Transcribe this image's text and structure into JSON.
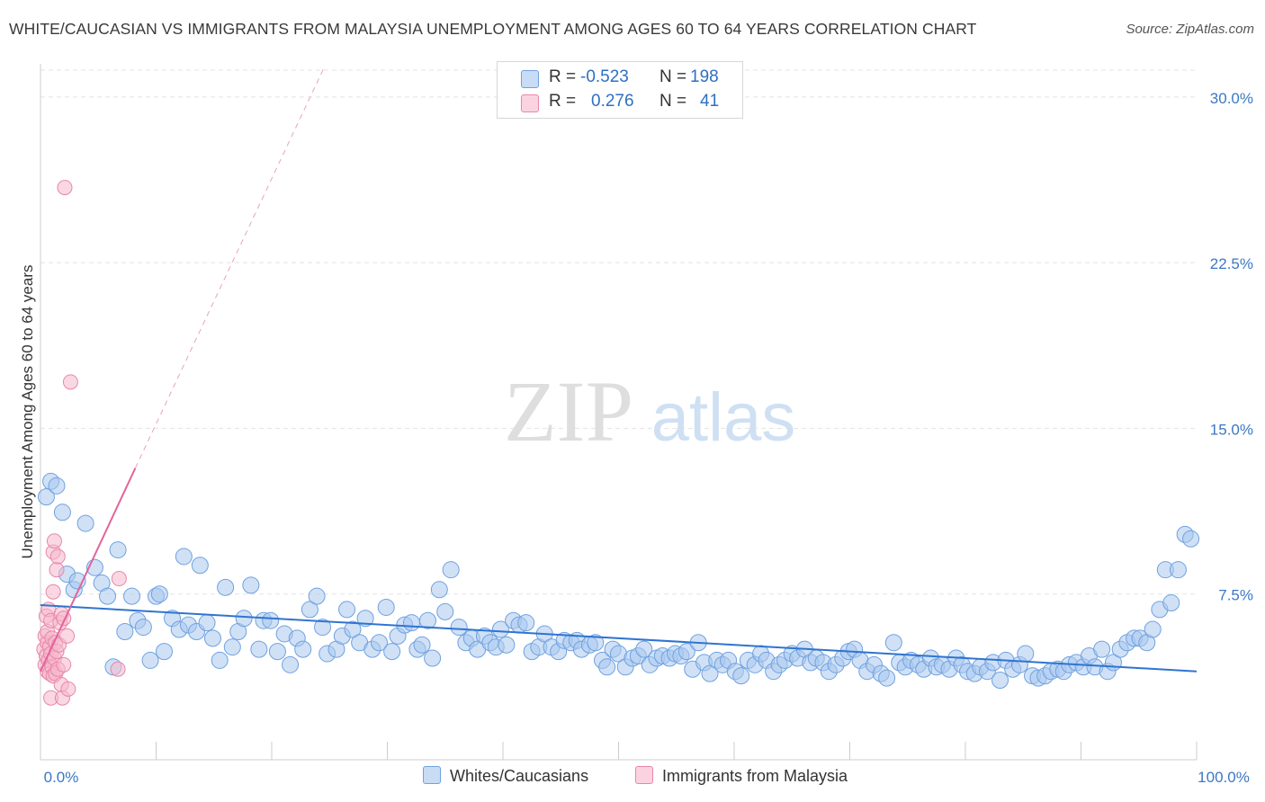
{
  "title": "WHITE/CAUCASIAN VS IMMIGRANTS FROM MALAYSIA UNEMPLOYMENT AMONG AGES 60 TO 64 YEARS CORRELATION CHART",
  "source": "Source: ZipAtlas.com",
  "watermark": {
    "zip": "ZIP",
    "atlas": "atlas"
  },
  "legend": {
    "rows": [
      {
        "r_label": "R =",
        "r_value": "-0.523",
        "n_label": "N =",
        "n_value": "198",
        "color": "#a9c8ef"
      },
      {
        "r_label": "R =",
        "r_value": "0.276",
        "n_label": "N =",
        "n_value": "41",
        "color": "#f6b8cc"
      }
    ]
  },
  "bottom_legend": [
    {
      "label": "Whites/Caucasians",
      "color": "#a9c8ef"
    },
    {
      "label": "Immigrants from Malaysia",
      "color": "#f6b8cc"
    }
  ],
  "chart_data": {
    "type": "scatter",
    "ylabel": "Unemployment Among Ages 60 to 64 years",
    "xlim": [
      0,
      100
    ],
    "ylim": [
      0,
      31.5
    ],
    "x_tick_labels": [
      "0.0%",
      "100.0%"
    ],
    "y_ticks": [
      {
        "value": 7.5,
        "label": "7.5%"
      },
      {
        "value": 15.0,
        "label": "15.0%"
      },
      {
        "value": 22.5,
        "label": "22.5%"
      },
      {
        "value": 30.0,
        "label": "30.0%"
      }
    ],
    "grid": true,
    "legend_position": "top-center",
    "series": [
      {
        "name": "Whites/Caucasians",
        "color": "#6fa1e0",
        "fill": "#a9c8ef",
        "trend": {
          "x0": 0,
          "y0": 7.0,
          "x1": 100,
          "y1": 4.0,
          "color": "#2f74d0"
        },
        "points": [
          [
            0.5,
            11.9
          ],
          [
            0.9,
            12.6
          ],
          [
            1.4,
            12.4
          ],
          [
            1.9,
            11.2
          ],
          [
            2.3,
            8.4
          ],
          [
            2.9,
            7.7
          ],
          [
            3.2,
            8.1
          ],
          [
            3.9,
            10.7
          ],
          [
            4.7,
            8.7
          ],
          [
            5.3,
            8.0
          ],
          [
            5.8,
            7.4
          ],
          [
            6.3,
            4.2
          ],
          [
            6.7,
            9.5
          ],
          [
            7.3,
            5.8
          ],
          [
            7.9,
            7.4
          ],
          [
            8.4,
            6.3
          ],
          [
            8.9,
            6.0
          ],
          [
            9.5,
            4.5
          ],
          [
            10.0,
            7.4
          ],
          [
            10.3,
            7.5
          ],
          [
            10.7,
            4.9
          ],
          [
            11.4,
            6.4
          ],
          [
            12.0,
            5.9
          ],
          [
            12.4,
            9.2
          ],
          [
            12.8,
            6.1
          ],
          [
            13.5,
            5.8
          ],
          [
            13.8,
            8.8
          ],
          [
            14.4,
            6.2
          ],
          [
            14.9,
            5.5
          ],
          [
            15.5,
            4.5
          ],
          [
            16.0,
            7.8
          ],
          [
            16.6,
            5.1
          ],
          [
            17.1,
            5.8
          ],
          [
            17.6,
            6.4
          ],
          [
            18.2,
            7.9
          ],
          [
            18.9,
            5.0
          ],
          [
            19.3,
            6.3
          ],
          [
            19.9,
            6.3
          ],
          [
            20.5,
            4.9
          ],
          [
            21.1,
            5.7
          ],
          [
            21.6,
            4.3
          ],
          [
            22.2,
            5.5
          ],
          [
            22.7,
            5.0
          ],
          [
            23.3,
            6.8
          ],
          [
            23.9,
            7.4
          ],
          [
            24.4,
            6.0
          ],
          [
            24.8,
            4.8
          ],
          [
            25.6,
            5.0
          ],
          [
            26.1,
            5.6
          ],
          [
            26.5,
            6.8
          ],
          [
            27.0,
            5.9
          ],
          [
            27.6,
            5.3
          ],
          [
            28.1,
            6.4
          ],
          [
            28.7,
            5.0
          ],
          [
            29.3,
            5.3
          ],
          [
            29.9,
            6.9
          ],
          [
            30.4,
            4.9
          ],
          [
            30.9,
            5.6
          ],
          [
            31.5,
            6.1
          ],
          [
            32.1,
            6.2
          ],
          [
            32.6,
            5.0
          ],
          [
            33.0,
            5.2
          ],
          [
            33.5,
            6.3
          ],
          [
            33.9,
            4.6
          ],
          [
            34.5,
            7.7
          ],
          [
            35.0,
            6.7
          ],
          [
            35.5,
            8.6
          ],
          [
            36.2,
            6.0
          ],
          [
            36.8,
            5.3
          ],
          [
            37.3,
            5.5
          ],
          [
            37.8,
            5.0
          ],
          [
            38.4,
            5.6
          ],
          [
            38.9,
            5.3
          ],
          [
            39.4,
            5.1
          ],
          [
            39.8,
            5.9
          ],
          [
            40.3,
            5.2
          ],
          [
            40.9,
            6.3
          ],
          [
            41.4,
            6.1
          ],
          [
            42.0,
            6.2
          ],
          [
            42.5,
            4.9
          ],
          [
            43.1,
            5.1
          ],
          [
            43.6,
            5.7
          ],
          [
            44.2,
            5.1
          ],
          [
            44.8,
            4.9
          ],
          [
            45.3,
            5.4
          ],
          [
            45.9,
            5.3
          ],
          [
            46.4,
            5.4
          ],
          [
            46.8,
            5.0
          ],
          [
            47.5,
            5.2
          ],
          [
            48.0,
            5.3
          ],
          [
            48.6,
            4.5
          ],
          [
            49.0,
            4.2
          ],
          [
            49.5,
            5.0
          ],
          [
            50.0,
            4.8
          ],
          [
            50.6,
            4.2
          ],
          [
            51.2,
            4.6
          ],
          [
            51.7,
            4.7
          ],
          [
            52.2,
            5.0
          ],
          [
            52.7,
            4.3
          ],
          [
            53.3,
            4.6
          ],
          [
            53.8,
            4.7
          ],
          [
            54.4,
            4.6
          ],
          [
            54.9,
            4.8
          ],
          [
            55.4,
            4.7
          ],
          [
            55.9,
            4.9
          ],
          [
            56.4,
            4.1
          ],
          [
            56.9,
            5.3
          ],
          [
            57.4,
            4.4
          ],
          [
            57.9,
            3.9
          ],
          [
            58.5,
            4.5
          ],
          [
            59.0,
            4.3
          ],
          [
            59.5,
            4.5
          ],
          [
            60.1,
            4.0
          ],
          [
            60.6,
            3.8
          ],
          [
            61.2,
            4.5
          ],
          [
            61.8,
            4.3
          ],
          [
            62.3,
            4.8
          ],
          [
            62.8,
            4.5
          ],
          [
            63.4,
            4.0
          ],
          [
            63.9,
            4.3
          ],
          [
            64.4,
            4.5
          ],
          [
            65.0,
            4.8
          ],
          [
            65.5,
            4.6
          ],
          [
            66.1,
            5.0
          ],
          [
            66.6,
            4.4
          ],
          [
            67.1,
            4.6
          ],
          [
            67.7,
            4.4
          ],
          [
            68.2,
            4.0
          ],
          [
            68.8,
            4.3
          ],
          [
            69.4,
            4.6
          ],
          [
            69.9,
            4.9
          ],
          [
            70.4,
            5.0
          ],
          [
            70.9,
            4.5
          ],
          [
            71.5,
            4.0
          ],
          [
            72.1,
            4.3
          ],
          [
            72.7,
            3.9
          ],
          [
            73.2,
            3.7
          ],
          [
            73.8,
            5.3
          ],
          [
            74.3,
            4.4
          ],
          [
            74.8,
            4.2
          ],
          [
            75.3,
            4.5
          ],
          [
            75.9,
            4.3
          ],
          [
            76.4,
            4.1
          ],
          [
            77.0,
            4.6
          ],
          [
            77.5,
            4.2
          ],
          [
            78.0,
            4.3
          ],
          [
            78.6,
            4.1
          ],
          [
            79.2,
            4.6
          ],
          [
            79.7,
            4.3
          ],
          [
            80.2,
            4.0
          ],
          [
            80.8,
            3.9
          ],
          [
            81.3,
            4.2
          ],
          [
            81.9,
            4.0
          ],
          [
            82.4,
            4.4
          ],
          [
            83.0,
            3.6
          ],
          [
            83.5,
            4.5
          ],
          [
            84.1,
            4.1
          ],
          [
            84.7,
            4.3
          ],
          [
            85.2,
            4.8
          ],
          [
            85.8,
            3.8
          ],
          [
            86.3,
            3.7
          ],
          [
            86.9,
            3.8
          ],
          [
            87.4,
            4.0
          ],
          [
            88.0,
            4.1
          ],
          [
            88.5,
            4.0
          ],
          [
            89.0,
            4.3
          ],
          [
            89.6,
            4.4
          ],
          [
            90.2,
            4.2
          ],
          [
            90.7,
            4.7
          ],
          [
            91.2,
            4.2
          ],
          [
            91.8,
            5.0
          ],
          [
            92.3,
            4.0
          ],
          [
            92.8,
            4.4
          ],
          [
            93.4,
            5.0
          ],
          [
            94.0,
            5.3
          ],
          [
            94.6,
            5.5
          ],
          [
            95.1,
            5.5
          ],
          [
            95.7,
            5.3
          ],
          [
            96.2,
            5.9
          ],
          [
            96.8,
            6.8
          ],
          [
            97.3,
            8.6
          ],
          [
            97.8,
            7.1
          ],
          [
            98.4,
            8.6
          ],
          [
            99.0,
            10.2
          ],
          [
            99.5,
            10.0
          ]
        ]
      },
      {
        "name": "Immigrants from Malaysia",
        "color": "#e887a8",
        "fill": "#f6b8cc",
        "trend": {
          "x0": 0,
          "y0": 4.0,
          "x1": 8.2,
          "y1": 13.2,
          "x_dash_end": 24.5,
          "y_dash_end": 31.3,
          "color": "#e3649a"
        },
        "points": [
          [
            0.3,
            5.0
          ],
          [
            0.4,
            4.3
          ],
          [
            0.4,
            5.6
          ],
          [
            0.5,
            4.7
          ],
          [
            0.5,
            6.5
          ],
          [
            0.6,
            4.0
          ],
          [
            0.6,
            5.3
          ],
          [
            0.6,
            5.8
          ],
          [
            0.7,
            4.5
          ],
          [
            0.7,
            6.8
          ],
          [
            0.8,
            3.9
          ],
          [
            0.8,
            5.1
          ],
          [
            0.9,
            4.8
          ],
          [
            0.9,
            6.3
          ],
          [
            0.9,
            2.8
          ],
          [
            1.0,
            4.2
          ],
          [
            1.0,
            5.5
          ],
          [
            1.1,
            3.8
          ],
          [
            1.1,
            7.6
          ],
          [
            1.1,
            9.4
          ],
          [
            1.2,
            4.6
          ],
          [
            1.2,
            9.9
          ],
          [
            1.3,
            5.3
          ],
          [
            1.3,
            3.9
          ],
          [
            1.4,
            4.9
          ],
          [
            1.4,
            8.6
          ],
          [
            1.5,
            9.2
          ],
          [
            1.5,
            4.1
          ],
          [
            1.6,
            5.2
          ],
          [
            1.7,
            6.2
          ],
          [
            1.8,
            6.6
          ],
          [
            1.8,
            3.4
          ],
          [
            1.9,
            2.8
          ],
          [
            2.0,
            4.3
          ],
          [
            2.0,
            6.4
          ],
          [
            2.1,
            25.9
          ],
          [
            2.3,
            5.6
          ],
          [
            2.4,
            3.2
          ],
          [
            2.6,
            17.1
          ],
          [
            6.7,
            4.1
          ],
          [
            6.8,
            8.2
          ]
        ]
      }
    ]
  }
}
